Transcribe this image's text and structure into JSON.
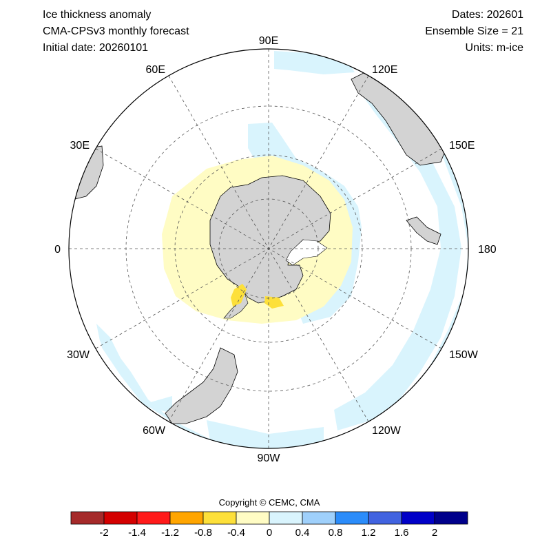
{
  "header": {
    "title": "Ice thickness anomaly",
    "model": "CMA-CPSv3 monthly forecast",
    "initial_date": "Initial date: 20260101",
    "dates": "Dates: 202601",
    "ensemble": "Ensemble Size = 21",
    "units": "Units: m-ice"
  },
  "map": {
    "projection": "south-polar-stereographic",
    "longitude_labels": {
      "90E": "90E",
      "120E": "120E",
      "150E": "150E",
      "180": "180",
      "150W": "150W",
      "120W": "120W",
      "90W": "90W",
      "60W": "60W",
      "30W": "30W",
      "0": "0",
      "30E": "30E",
      "60E": "60E"
    },
    "colors": {
      "land": "#d3d3d3",
      "positive_small": "#d9f4fd",
      "negative_small": "#fffcc4",
      "negative_mid": "#fde03a",
      "graticule": "#555555"
    }
  },
  "copyright": "Copyright © CEMC, CMA",
  "legend": {
    "colors": [
      "#a52a2a",
      "#d40000",
      "#ff1a1a",
      "#ffa500",
      "#fde03a",
      "#fffcc4",
      "#d9f4fd",
      "#9fd0fb",
      "#2b8cfa",
      "#4163e0",
      "#0000c8",
      "#00008b"
    ],
    "tick_labels": [
      "-2",
      "-1.4",
      "-1.2",
      "-0.8",
      "-0.4",
      "0",
      "0.4",
      "0.8",
      "1.2",
      "1.6",
      "2"
    ]
  }
}
